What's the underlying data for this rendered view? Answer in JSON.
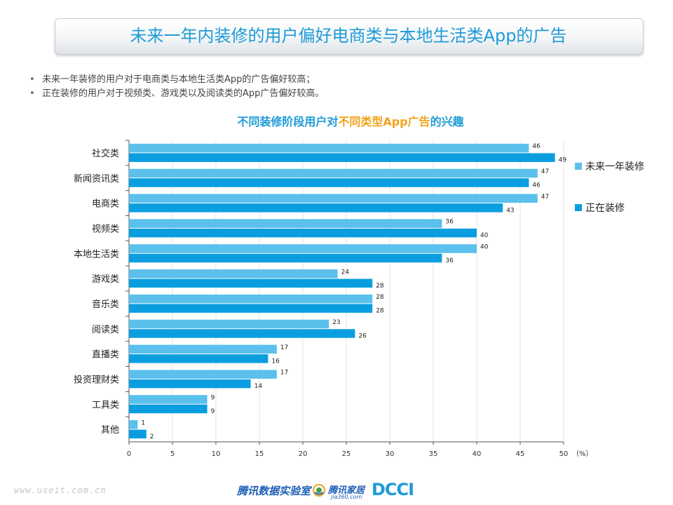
{
  "header": {
    "title": "未来一年内装修的用户偏好电商类与本地生活类App的广告"
  },
  "bullets": [
    "未来一年装修的用户对于电商类与本地生活类App的广告偏好较高；",
    "正在装修的用户对于视频类、游戏类以及阅读类的App广告偏好较高。"
  ],
  "chart_data": {
    "type": "bar",
    "orientation": "horizontal",
    "title_parts": [
      "不同装修阶段用户对",
      "不同类型App广告",
      "的兴趣"
    ],
    "title": "不同装修阶段用户对不同类型App广告的兴趣",
    "categories": [
      "社交类",
      "新闻资讯类",
      "电商类",
      "视频类",
      "本地生活类",
      "游戏类",
      "音乐类",
      "阅读类",
      "直播类",
      "投资理财类",
      "工具类",
      "其他"
    ],
    "series": [
      {
        "name": "未来一年装修",
        "color": "#5bc0ec",
        "values": [
          46,
          47,
          47,
          36,
          40,
          24,
          28,
          23,
          17,
          17,
          9,
          1
        ]
      },
      {
        "name": "正在装修",
        "color": "#0a9ee0",
        "values": [
          49,
          46,
          43,
          40,
          36,
          28,
          28,
          26,
          16,
          14,
          9,
          2
        ]
      }
    ],
    "xlim": [
      0,
      50
    ],
    "xticks": [
      0,
      5,
      10,
      15,
      20,
      25,
      30,
      35,
      40,
      45,
      50
    ],
    "x_unit": "（%）",
    "legend_position": "right",
    "grid": true
  },
  "footer": {
    "url": "www.useit.com.cn",
    "logo1": "腾讯数据实验室",
    "logo2": "腾讯家居",
    "logo2_sub": "jia360.com",
    "logo3": "DCCI"
  }
}
